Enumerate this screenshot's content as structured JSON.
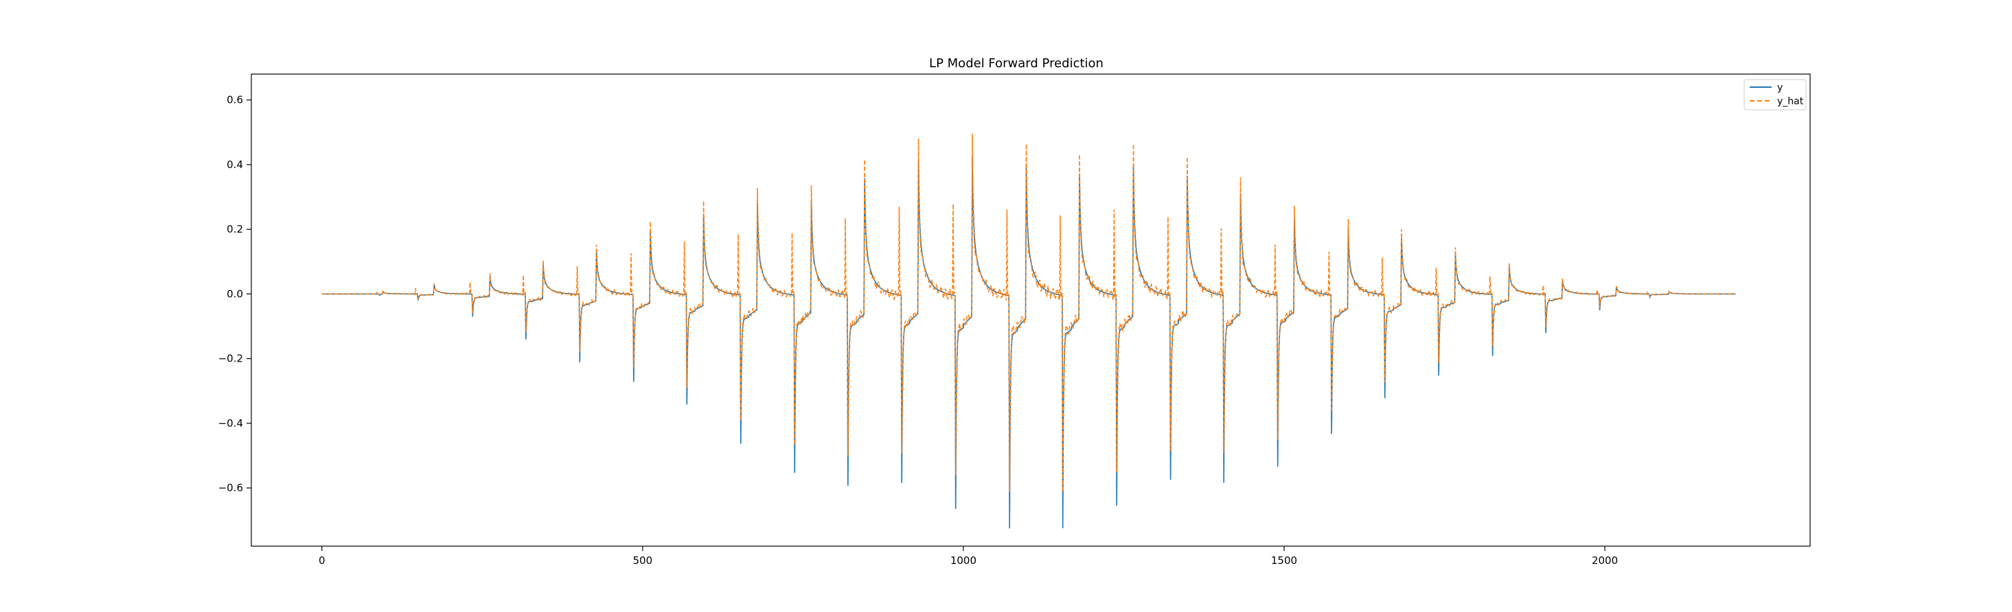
{
  "chart_data": {
    "type": "line",
    "title": "LP Model Forward Prediction",
    "xlabel": "",
    "ylabel": "",
    "xlim": [
      -110,
      2320
    ],
    "ylim": [
      -0.78,
      0.68
    ],
    "x_ticks": [
      0,
      500,
      1000,
      1500,
      2000
    ],
    "x_tick_labels": [
      "0",
      "500",
      "1000",
      "1500",
      "2000"
    ],
    "y_ticks": [
      -0.6,
      -0.4,
      -0.2,
      0.0,
      0.2,
      0.4,
      0.6
    ],
    "y_tick_labels": [
      "−0.6",
      "−0.4",
      "−0.2",
      "0.0",
      "0.2",
      "0.4",
      "0.6"
    ],
    "grid": false,
    "legend_position": "top-right",
    "n_samples": 2205,
    "series": [
      {
        "name": "y",
        "color": "#1f77b4",
        "style": "solid"
      },
      {
        "name": "y_hat",
        "color": "#ff7f0e",
        "style": "dashed"
      }
    ],
    "pulses": [
      {
        "x_neg": 90,
        "x_pos": 95,
        "neg": -0.004,
        "pos": 0.01
      },
      {
        "x_neg": 150,
        "x_pos": 175,
        "neg": -0.02,
        "pos": 0.04
      },
      {
        "x_neg": 235,
        "x_pos": 262,
        "neg": -0.07,
        "pos": 0.08
      },
      {
        "x_neg": 318,
        "x_pos": 345,
        "neg": -0.14,
        "pos": 0.13
      },
      {
        "x_neg": 402,
        "x_pos": 428,
        "neg": -0.21,
        "pos": 0.19
      },
      {
        "x_neg": 486,
        "x_pos": 512,
        "neg": -0.27,
        "pos": 0.28
      },
      {
        "x_neg": 569,
        "x_pos": 595,
        "neg": -0.34,
        "pos": 0.36
      },
      {
        "x_neg": 653,
        "x_pos": 679,
        "neg": -0.46,
        "pos": 0.41
      },
      {
        "x_neg": 737,
        "x_pos": 763,
        "neg": -0.55,
        "pos": 0.42
      },
      {
        "x_neg": 820,
        "x_pos": 846,
        "neg": -0.59,
        "pos": 0.52
      },
      {
        "x_neg": 904,
        "x_pos": 930,
        "neg": -0.58,
        "pos": 0.6
      },
      {
        "x_neg": 988,
        "x_pos": 1014,
        "neg": -0.66,
        "pos": 0.62
      },
      {
        "x_neg": 1072,
        "x_pos": 1098,
        "neg": -0.72,
        "pos": 0.58
      },
      {
        "x_neg": 1155,
        "x_pos": 1181,
        "neg": -0.72,
        "pos": 0.54
      },
      {
        "x_neg": 1239,
        "x_pos": 1265,
        "neg": -0.65,
        "pos": 0.58
      },
      {
        "x_neg": 1323,
        "x_pos": 1349,
        "neg": -0.57,
        "pos": 0.53
      },
      {
        "x_neg": 1406,
        "x_pos": 1432,
        "neg": -0.58,
        "pos": 0.45
      },
      {
        "x_neg": 1490,
        "x_pos": 1516,
        "neg": -0.53,
        "pos": 0.34
      },
      {
        "x_neg": 1574,
        "x_pos": 1600,
        "neg": -0.43,
        "pos": 0.29
      },
      {
        "x_neg": 1657,
        "x_pos": 1683,
        "neg": -0.32,
        "pos": 0.25
      },
      {
        "x_neg": 1741,
        "x_pos": 1767,
        "neg": -0.25,
        "pos": 0.18
      },
      {
        "x_neg": 1825,
        "x_pos": 1851,
        "neg": -0.19,
        "pos": 0.12
      },
      {
        "x_neg": 1908,
        "x_pos": 1934,
        "neg": -0.12,
        "pos": 0.06
      },
      {
        "x_neg": 1992,
        "x_pos": 2018,
        "neg": -0.05,
        "pos": 0.03
      },
      {
        "x_neg": 2070,
        "x_pos": 2100,
        "neg": -0.01,
        "pos": 0.01
      }
    ]
  }
}
